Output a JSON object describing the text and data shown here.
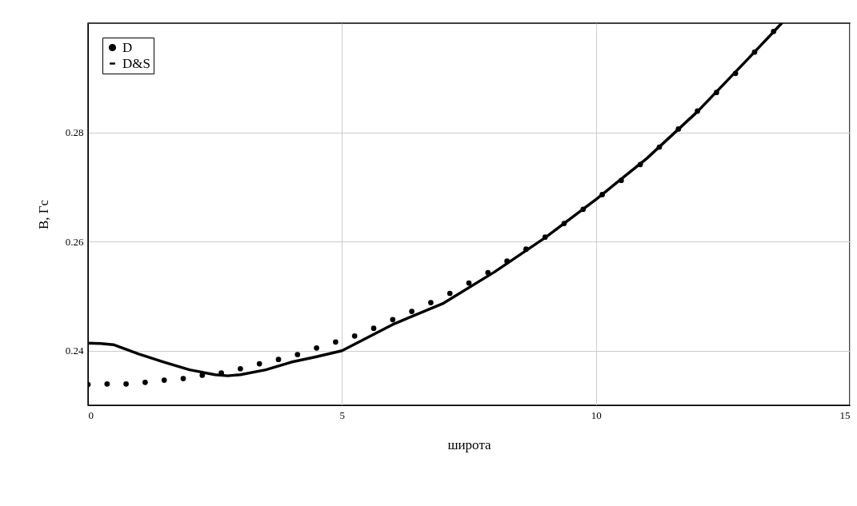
{
  "chart_data": {
    "type": "line",
    "xlabel": "широта",
    "ylabel": "B, Гс",
    "xlim": [
      0,
      15
    ],
    "xticks": [
      0,
      5,
      10,
      15
    ],
    "ylim": [
      0.23,
      0.3
    ],
    "yticks": [
      0.24,
      0.26,
      0.28
    ],
    "grid": true,
    "legend": "top left",
    "series": [
      {
        "name": "D",
        "type": "scatter",
        "marker": "circle",
        "color": "#000000",
        "x": [
          0,
          0.375,
          0.75,
          1.125,
          1.5,
          1.875,
          2.25,
          2.625,
          3,
          3.375,
          3.75,
          4.125,
          4.5,
          4.875,
          5.25,
          5.625,
          6,
          6.375,
          6.75,
          7.125,
          7.5,
          7.875,
          8.25,
          8.625,
          9,
          9.375,
          9.75,
          10.125,
          10.5,
          10.875,
          11.25,
          11.625,
          12,
          12.375,
          12.75,
          13.125,
          13.5
        ],
        "values": [
          0.2338,
          0.2339,
          0.2339,
          0.2342,
          0.2346,
          0.2349,
          0.2355,
          0.2359,
          0.2367,
          0.2376,
          0.2384,
          0.2393,
          0.2405,
          0.2416,
          0.2427,
          0.2441,
          0.2457,
          0.2472,
          0.2488,
          0.2505,
          0.2524,
          0.2543,
          0.2564,
          0.2586,
          0.2608,
          0.2633,
          0.2659,
          0.2686,
          0.2712,
          0.2741,
          0.2773,
          0.2806,
          0.2839,
          0.2873,
          0.2908,
          0.2947,
          0.2985
        ]
      },
      {
        "name": "D&S",
        "type": "line",
        "line_style": "solid",
        "color": "#000000",
        "x": [
          0,
          0.25,
          0.5,
          1,
          1.5,
          2,
          2.5,
          2.75,
          3,
          3.5,
          4,
          4.5,
          5,
          6,
          7,
          8,
          9,
          10,
          11,
          12,
          13,
          13.66
        ],
        "values": [
          0.2414,
          0.2413,
          0.2411,
          0.2394,
          0.2379,
          0.2365,
          0.2356,
          0.2354,
          0.2356,
          0.2365,
          0.2379,
          0.2389,
          0.24,
          0.2448,
          0.2487,
          0.2544,
          0.2607,
          0.2677,
          0.2752,
          0.2838,
          0.2935,
          0.3
        ]
      }
    ]
  }
}
